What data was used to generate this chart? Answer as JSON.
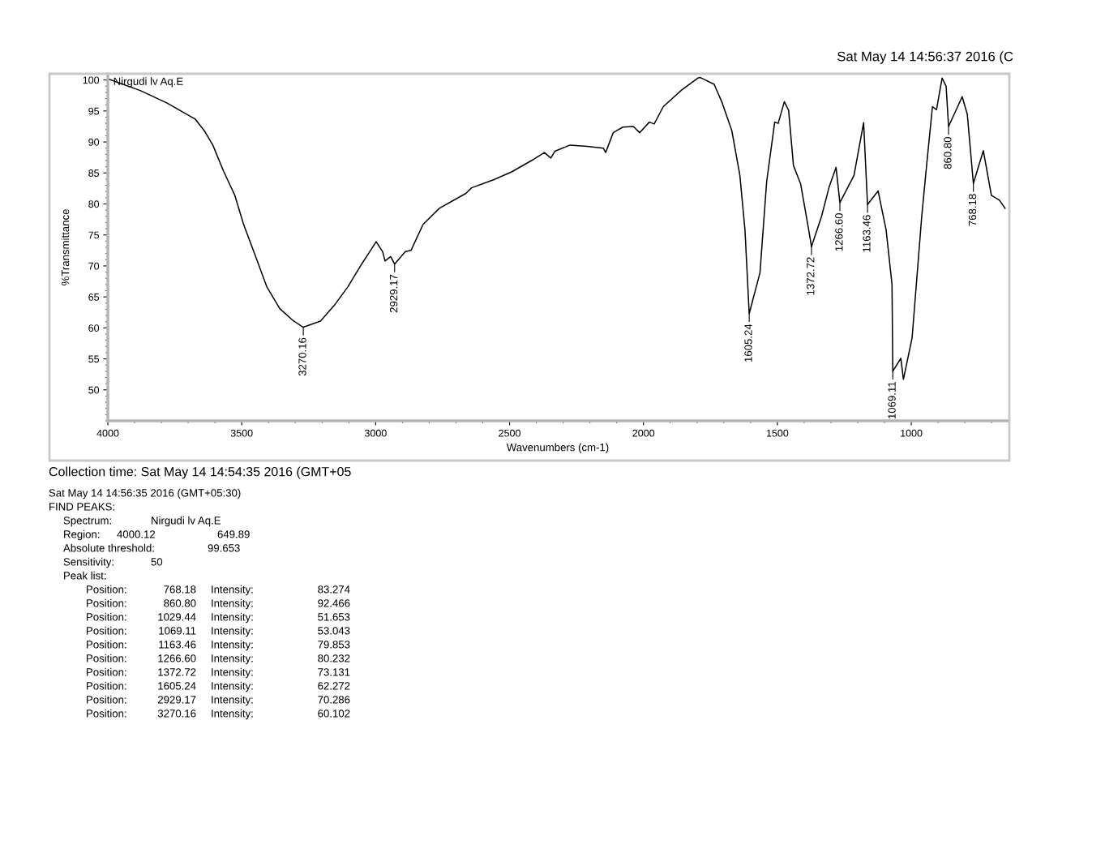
{
  "chart_data": {
    "type": "line",
    "title": "Sat May 14 14:56:37 2016 (C",
    "xlabel": "Wavenumbers (cm-1)",
    "ylabel": "%Transmittance",
    "xlim": [
      4000,
      640
    ],
    "ylim": [
      45,
      101
    ],
    "xticks": [
      4000,
      3500,
      3000,
      2500,
      2000,
      1500,
      1000
    ],
    "yticks": [
      50,
      55,
      60,
      65,
      70,
      75,
      80,
      85,
      90,
      95,
      100
    ],
    "grid": false,
    "legend": false,
    "marker": "none",
    "line_style": "solid",
    "series": [
      {
        "name": "Nirgudi lv Aq.E",
        "color": "#000000",
        "x": [
          4000,
          3879,
          3780,
          3707,
          3674,
          3638,
          3608,
          3568,
          3526,
          3493,
          3448,
          3406,
          3358,
          3306,
          3270.16,
          3206,
          3155,
          3104,
          3055,
          2998,
          2974,
          2965,
          2944,
          2929.17,
          2889,
          2868,
          2823,
          2762,
          2663,
          2642,
          2560,
          2491,
          2410,
          2370,
          2346,
          2331,
          2274,
          2210,
          2150,
          2141,
          2113,
          2077,
          2038,
          2014,
          1978,
          1960,
          1926,
          1857,
          1797,
          1788,
          1736,
          1706,
          1670,
          1640,
          1621,
          1605.24,
          1565,
          1540,
          1510,
          1497,
          1474,
          1458,
          1440,
          1413,
          1383,
          1372.72,
          1335,
          1307,
          1281,
          1266.6,
          1214,
          1178,
          1163.46,
          1124,
          1094,
          1072,
          1069.11,
          1039,
          1029.44,
          997,
          961,
          942,
          921,
          906,
          885,
          870,
          860.8,
          810,
          791,
          768.18,
          731,
          701,
          671,
          650
        ],
        "values": [
          100.2,
          98.3,
          96.3,
          94.5,
          93.7,
          91.7,
          89.5,
          85.3,
          81.4,
          76.7,
          71.5,
          66.6,
          63.1,
          61.1,
          60.1,
          61.1,
          63.6,
          66.6,
          70.1,
          73.9,
          72.3,
          70.8,
          71.5,
          70.3,
          72.3,
          72.5,
          76.7,
          79.3,
          81.7,
          82.6,
          83.9,
          85.2,
          87.2,
          88.3,
          87.4,
          88.5,
          89.5,
          89.3,
          89.0,
          88.3,
          91.5,
          92.4,
          92.5,
          91.5,
          93.2,
          92.9,
          95.7,
          98.4,
          100.3,
          100.4,
          99.3,
          96.3,
          91.8,
          84.6,
          75.8,
          62.3,
          68.9,
          83.6,
          93.2,
          93.0,
          96.5,
          95.1,
          86.2,
          83.2,
          75.8,
          73.1,
          78.0,
          82.7,
          85.9,
          80.2,
          84.6,
          93.1,
          79.9,
          82.1,
          75.8,
          67.0,
          53.0,
          55.1,
          51.7,
          58.4,
          78.0,
          86.6,
          95.7,
          95.2,
          100.3,
          99.0,
          92.5,
          97.3,
          94.5,
          83.3,
          88.6,
          81.4,
          80.6,
          79.3
        ]
      }
    ],
    "annotations": [
      {
        "text": "3270.16",
        "x": 3270.16,
        "y": 60.1
      },
      {
        "text": "2929.17",
        "x": 2929.17,
        "y": 70.3
      },
      {
        "text": "1605.24",
        "x": 1605.24,
        "y": 62.3
      },
      {
        "text": "1372.72",
        "x": 1372.72,
        "y": 73.1
      },
      {
        "text": "1266.60",
        "x": 1266.6,
        "y": 80.2
      },
      {
        "text": "1163.46",
        "x": 1163.46,
        "y": 79.9
      },
      {
        "text": "1069.11",
        "x": 1069.11,
        "y": 53.0
      },
      {
        "text": "860.80",
        "x": 860.8,
        "y": 92.5
      },
      {
        "text": "768.18",
        "x": 768.18,
        "y": 83.3
      },
      "Collection time: Sat May 14 14:54:35 2016 (GMT+05",
      "Sat May 14 14:56:35 2016 (GMT+05:30)",
      "FIND PEAKS:",
      "\tSpectrum:\tNirgudi lv Aq.E",
      "\tRegion:\t4000.12\t649.89",
      "\tAbsolute threshold:\t99.653",
      "\tSensitivity:\t50",
      "\tPeak list:",
      "\t\tPosition:\t768.18\tIntensity:\t83.274",
      "\t\tPosition:\t860.80\tIntensity:\t92.466",
      "\t\tPosition:\t1029.44\tIntensity:\t51.653",
      "\t\tPosition:\t1069.11\tIntensity:\t53.043",
      "\t\tPosition:\t1163.46\tIntensity:\t79.853",
      "\t\tPosition:\t1266.60\tIntensity:\t80.232",
      "\t\tPosition:\t1372.72\tIntensity:\t73.131",
      "\t\tPosition:\t1605.24\tIntensity:\t62.272",
      "\t\tPosition:\t2929.17\tIntensity:\t70.286",
      "\t\tPosition:\t3270.16\tIntensity:\t60.102"
    ]
  }
}
